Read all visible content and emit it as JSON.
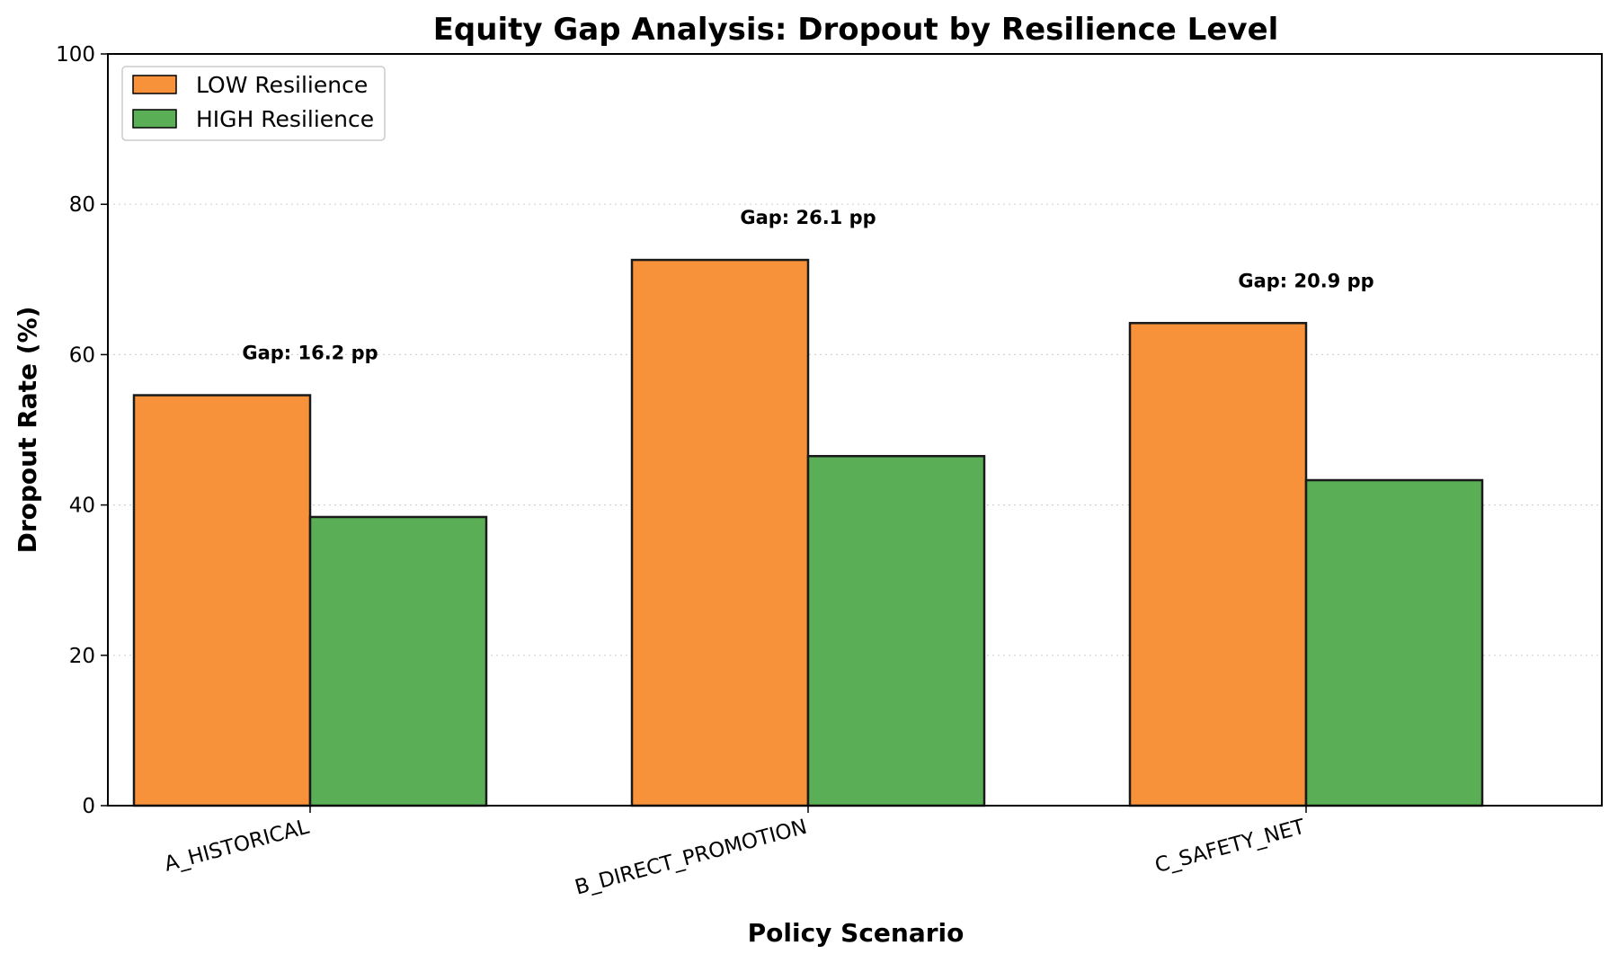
{
  "chart_data": {
    "type": "bar",
    "title": "Equity Gap Analysis: Dropout by Resilience Level",
    "xlabel": "Policy Scenario",
    "ylabel": "Dropout Rate (%)",
    "ylim": [
      0,
      100
    ],
    "yticks": [
      "0",
      "20",
      "40",
      "60",
      "80",
      "100"
    ],
    "categories": [
      "A_HISTORICAL",
      "B_DIRECT_PROMOTION",
      "C_SAFETY_NET"
    ],
    "series": [
      {
        "name": "LOW Resilience",
        "color": "#f7923a",
        "values": [
          54.6,
          72.6,
          64.2
        ]
      },
      {
        "name": "HIGH Resilience",
        "color": "#5aae55",
        "values": [
          38.4,
          46.5,
          43.3
        ]
      }
    ],
    "annotations": [
      "Gap: 16.2 pp",
      "Gap: 26.1 pp",
      "Gap: 20.9 pp"
    ],
    "grid": "y-dotted",
    "legend_position": "top-left"
  }
}
